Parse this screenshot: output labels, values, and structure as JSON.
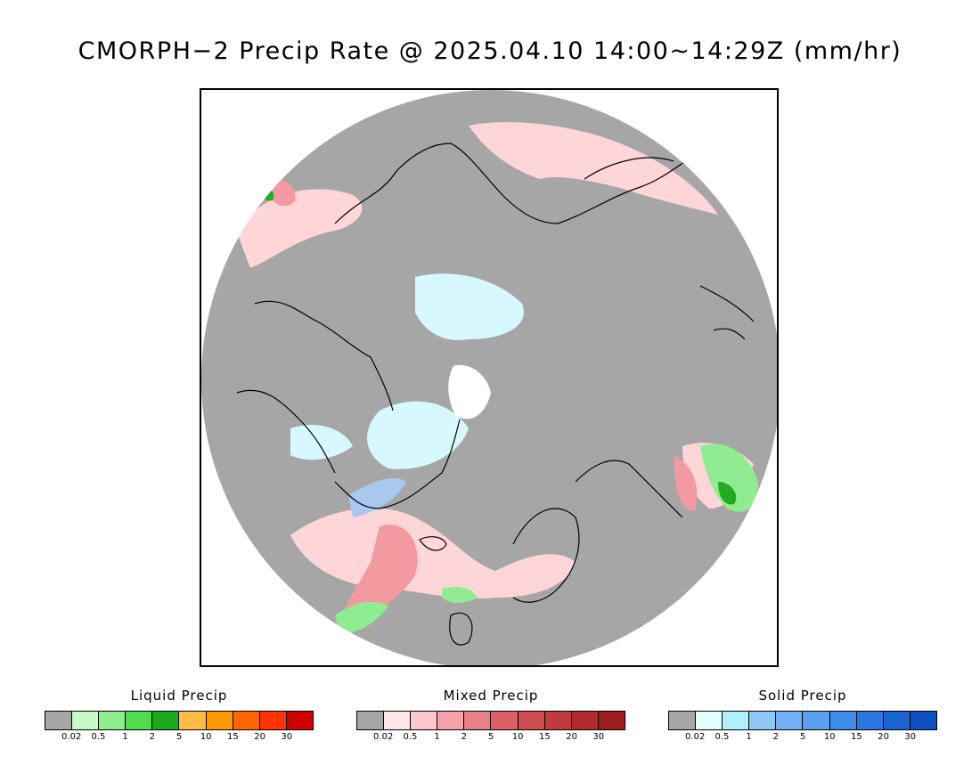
{
  "title": "CMORPH−2 Precip Rate @ 2025.04.10 14:00~14:29Z (mm/hr)",
  "map": {
    "projection": "north-polar-stereographic",
    "colors": {
      "background": "#ffffff",
      "no_precip": "#a6a6a6",
      "coast": "#000000",
      "mixed_light": "#ffd6d8",
      "mixed_mid": "#f29aa0",
      "mixed_dark": "#e07078",
      "liquid_light": "#90ec90",
      "liquid_dark": "#22aa22",
      "solid_light": "#d8f8ff",
      "solid_mid": "#a8c8f0",
      "polar_gap": "#ffffff"
    }
  },
  "legends": [
    {
      "title": "Liquid Precip",
      "ticks": [
        "0.02",
        "0.5",
        "1",
        "2",
        "5",
        "10",
        "15",
        "20",
        "30"
      ],
      "colors": [
        "#a6a6a6",
        "#c8fac8",
        "#8fec8f",
        "#4fdc4f",
        "#1ea81e",
        "#ffbb44",
        "#ff9900",
        "#ff6600",
        "#ff3300",
        "#cc0000"
      ]
    },
    {
      "title": "Mixed Precip",
      "ticks": [
        "0.02",
        "0.5",
        "1",
        "2",
        "5",
        "10",
        "15",
        "20",
        "30"
      ],
      "colors": [
        "#a6a6a6",
        "#ffe6e8",
        "#ffc6cc",
        "#f4a2a8",
        "#e88086",
        "#dc6066",
        "#d04c50",
        "#c03a3e",
        "#b02a2e",
        "#9c1c20"
      ]
    },
    {
      "title": "Solid Precip",
      "ticks": [
        "0.02",
        "0.5",
        "1",
        "2",
        "5",
        "10",
        "15",
        "20",
        "30"
      ],
      "colors": [
        "#a6a6a6",
        "#e0ffff",
        "#b0f0ff",
        "#90c8f8",
        "#74b0f4",
        "#5aa0f0",
        "#3c8ce8",
        "#2878e0",
        "#1a64d0",
        "#0c50c0"
      ]
    }
  ]
}
